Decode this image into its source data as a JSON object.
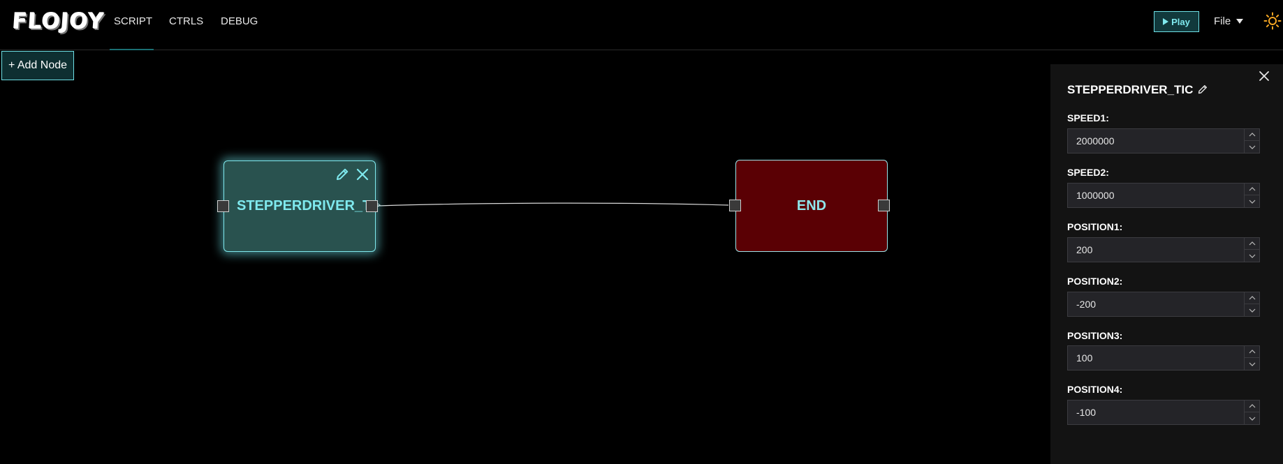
{
  "header": {
    "logo": "FLOJOY",
    "tabs": [
      {
        "label": "SCRIPT",
        "active": true
      },
      {
        "label": "CTRLS",
        "active": false
      },
      {
        "label": "DEBUG",
        "active": false
      }
    ],
    "play_label": "Play",
    "file_label": "File",
    "theme_icon": "sun-icon"
  },
  "canvas": {
    "add_node_label": "+ Add Node",
    "nodes": [
      {
        "label": "STEPPERDRIVER_TIC",
        "color": "#29524f",
        "selected": true
      },
      {
        "label": "END",
        "color": "#5a0004",
        "selected": false
      }
    ],
    "accent": "#6ee0e6"
  },
  "panel": {
    "title": "STEPPERDRIVER_TIC",
    "params": [
      {
        "label": "SPEED1:",
        "value": "2000000"
      },
      {
        "label": "SPEED2:",
        "value": "1000000"
      },
      {
        "label": "POSITION1:",
        "value": "200"
      },
      {
        "label": "POSITION2:",
        "value": "-200"
      },
      {
        "label": "POSITION3:",
        "value": "100"
      },
      {
        "label": "POSITION4:",
        "value": "-100"
      }
    ]
  }
}
